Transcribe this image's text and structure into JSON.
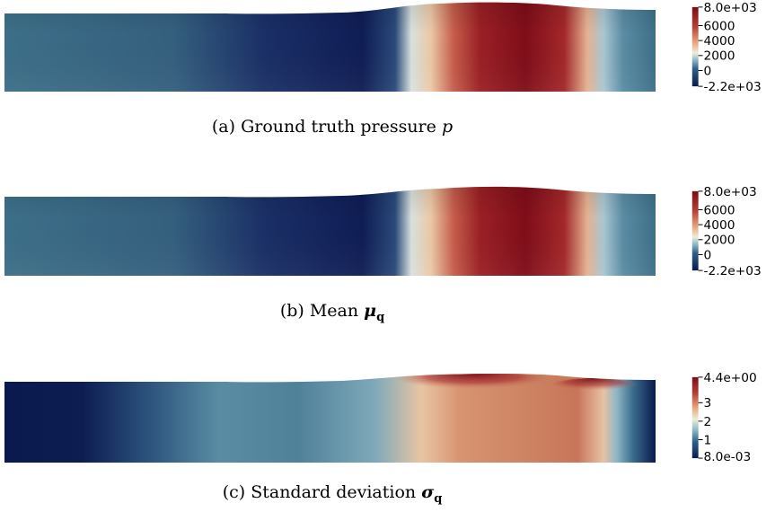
{
  "panels": [
    {
      "id": "a",
      "caption": {
        "prefix": "(a) Ground truth pressure",
        "symbol": "p",
        "subscript": ""
      },
      "colorbar": {
        "ticks": [
          "8.0e+03",
          "6000",
          "4000",
          "2000",
          "0",
          "-2.2e+03"
        ]
      },
      "colormap": "blue-white-red"
    },
    {
      "id": "b",
      "caption": {
        "prefix": "(b) Mean",
        "symbol": "μ",
        "subscript": "q"
      },
      "colorbar": {
        "ticks": [
          "8.0e+03",
          "6000",
          "4000",
          "2000",
          "0",
          "-2.2e+03"
        ]
      },
      "colormap": "blue-white-red"
    },
    {
      "id": "c",
      "caption": {
        "prefix": "(c) Standard deviation",
        "symbol": "σ",
        "subscript": "q"
      },
      "colorbar": {
        "ticks": [
          "4.4e+00",
          "3",
          "2",
          "1",
          "8.0e-03"
        ]
      },
      "colormap": "blue-white-red"
    }
  ],
  "colors": {
    "dark_navy": "#0a1a4e",
    "teal": "#3b6e86",
    "light": "#e3e6dd",
    "peach": "#e8a77e",
    "dark_red": "#7d0a14"
  }
}
